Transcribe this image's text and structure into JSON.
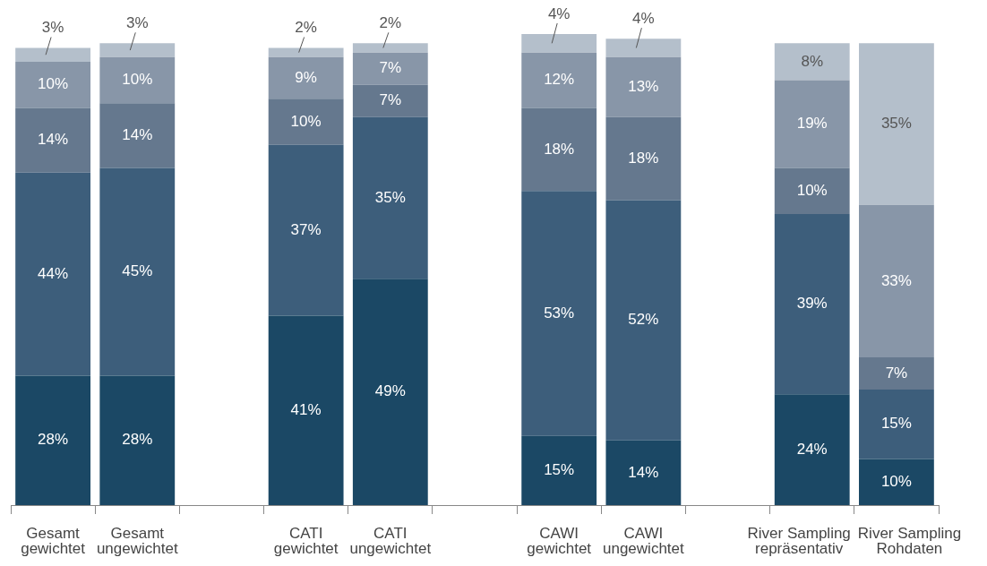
{
  "chart_data": {
    "type": "bar",
    "stacked": true,
    "legend": false,
    "grid": false,
    "tick_labels": "x",
    "categories": [
      "Gesamt\ngewichtet",
      "Gesamt\nungewichtet",
      null,
      "CATI\ngewichtet",
      "CATI\nungewichtet",
      null,
      "CAWI\ngewichtet",
      "CAWI\nungewichtet",
      null,
      "River Sampling\nrepräsentativ",
      "River Sampling\nRohdaten"
    ],
    "series": [
      {
        "color": "#1b4865",
        "values": [
          28,
          28,
          null,
          41,
          49,
          null,
          15,
          14,
          null,
          24,
          10
        ],
        "value_labels": [
          "28%",
          "28%",
          null,
          "41%",
          "49%",
          null,
          "15%",
          "14%",
          null,
          "24%",
          "10%"
        ]
      },
      {
        "color": "#3d5e7b",
        "values": [
          44,
          45,
          null,
          37,
          35,
          null,
          53,
          52,
          null,
          39,
          15
        ],
        "value_labels": [
          "44%",
          "45%",
          null,
          "37%",
          "35%",
          null,
          "53%",
          "52%",
          null,
          "39%",
          "15%"
        ]
      },
      {
        "color": "#65788e",
        "values": [
          14,
          14,
          null,
          10,
          7,
          null,
          18,
          18,
          null,
          10,
          7
        ],
        "value_labels": [
          "14%",
          "14%",
          null,
          "10%",
          "7%",
          null,
          "18%",
          "18%",
          null,
          "10%",
          "7%"
        ]
      },
      {
        "color": "#8896a8",
        "values": [
          10,
          10,
          null,
          9,
          7,
          null,
          12,
          13,
          null,
          19,
          33
        ],
        "value_labels": [
          "10%",
          "10%",
          null,
          "9%",
          "7%",
          null,
          "12%",
          "13%",
          null,
          "19%",
          "33%"
        ]
      },
      {
        "color": "#b4bfcb",
        "values": [
          3,
          3,
          null,
          2,
          2,
          null,
          4,
          4,
          null,
          8,
          35
        ],
        "value_labels": [
          "3%",
          "3%",
          null,
          "2%",
          "2%",
          null,
          "4%",
          "4%",
          null,
          "8%",
          "35%"
        ]
      }
    ]
  }
}
